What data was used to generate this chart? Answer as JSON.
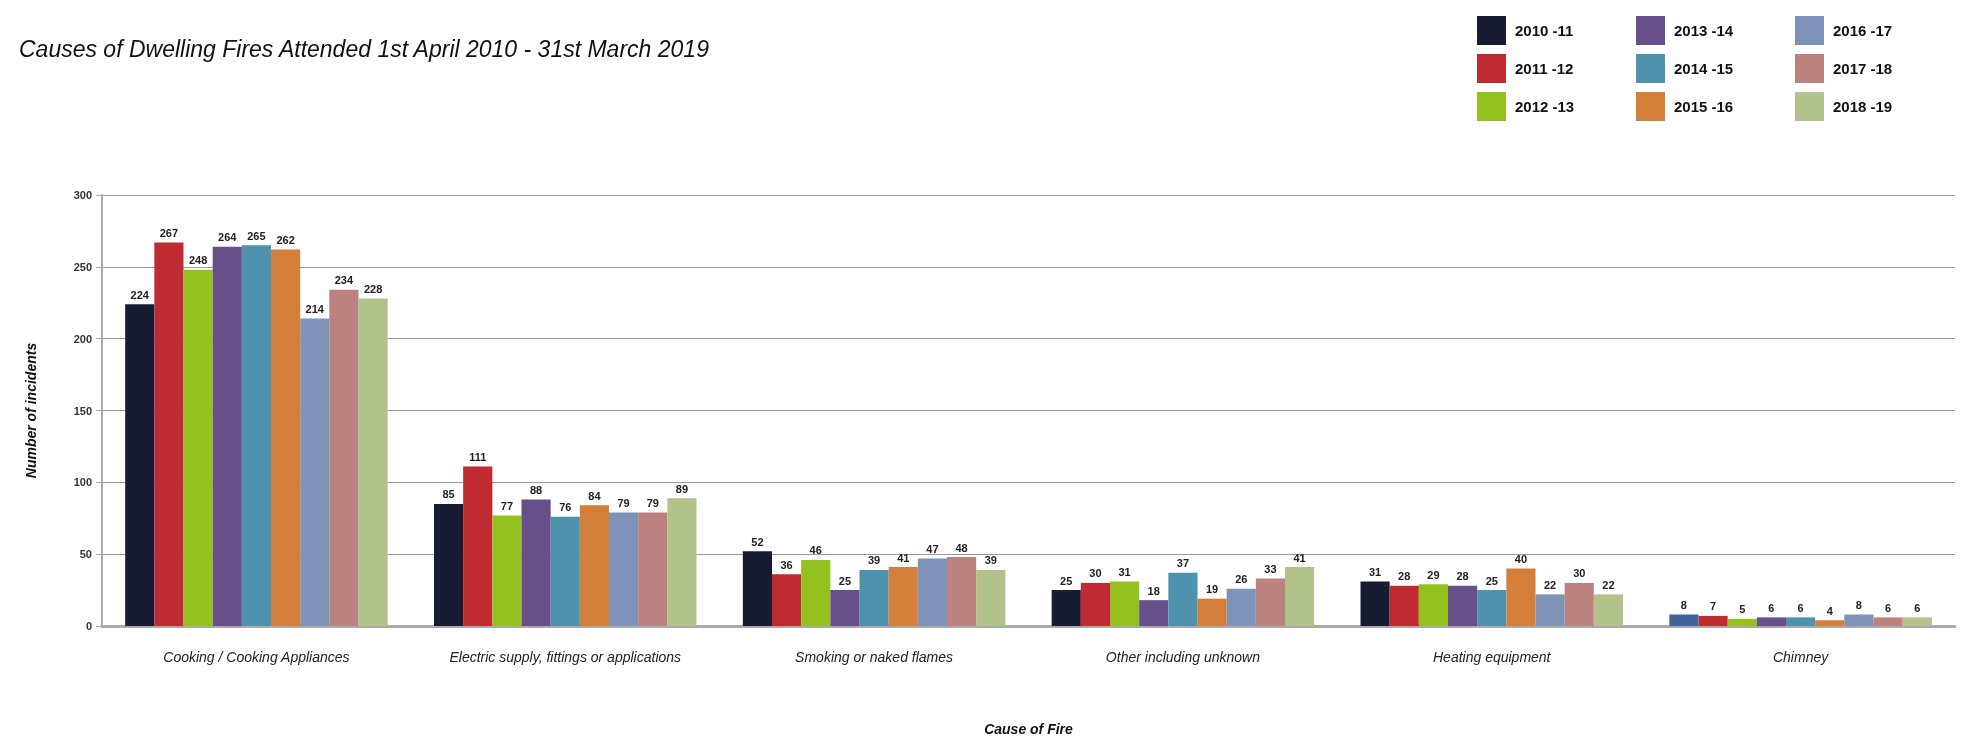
{
  "chart_data": {
    "type": "bar",
    "title": "Causes of Dwelling Fires Attended 1st April 2010 - 31st March 2019",
    "xlabel": "Cause of Fire",
    "ylabel": "Number of incidents",
    "categories": [
      "Cooking / Cooking Appliances",
      "Electric supply, fittings or applications",
      "Smoking or naked flames",
      "Other including unknown",
      "Heating equipment",
      "Chimney"
    ],
    "series": [
      {
        "name": "2010 -11",
        "color": "#181c33",
        "colors": [
          "#181c33",
          "#181c33",
          "#181c33",
          "#181c33",
          "#181c33",
          "#40639e"
        ],
        "values": [
          224,
          85,
          52,
          25,
          31,
          8
        ]
      },
      {
        "name": "2011 -12",
        "color": "#c02a31",
        "values": [
          267,
          111,
          36,
          30,
          28,
          7
        ]
      },
      {
        "name": "2012 -13",
        "color": "#95c11f",
        "values": [
          248,
          77,
          46,
          31,
          29,
          5
        ]
      },
      {
        "name": "2013 -14",
        "color": "#674f8a",
        "values": [
          264,
          88,
          25,
          18,
          28,
          6
        ]
      },
      {
        "name": "2014 -15",
        "color": "#4f92ae",
        "values": [
          265,
          76,
          39,
          37,
          25,
          6
        ]
      },
      {
        "name": "2015 -16",
        "color": "#d37f3a",
        "values": [
          262,
          84,
          41,
          19,
          40,
          4
        ]
      },
      {
        "name": "2016 -17",
        "color": "#7f93b9",
        "values": [
          214,
          79,
          47,
          26,
          22,
          8
        ]
      },
      {
        "name": "2017 -18",
        "color": "#bc8280",
        "values": [
          234,
          79,
          48,
          33,
          30,
          6
        ]
      },
      {
        "name": "2018 -19",
        "color": "#b1c28b",
        "values": [
          228,
          89,
          39,
          41,
          22,
          6
        ]
      }
    ],
    "ylim": [
      0,
      300
    ],
    "yticks": [
      0,
      50,
      100,
      150,
      200,
      250,
      300
    ],
    "grid": "y",
    "legend": "top right",
    "data_labels": true
  }
}
